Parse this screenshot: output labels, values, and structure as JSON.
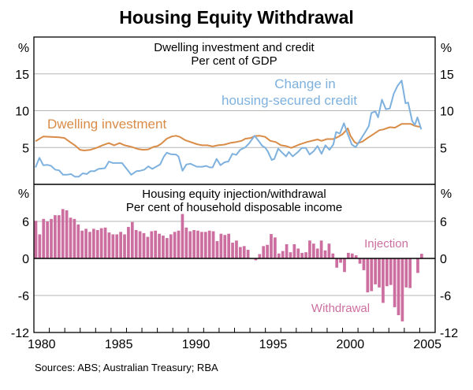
{
  "chart_data": [
    {
      "type": "line",
      "title": "Housing Equity Withdrawal",
      "panel_title": "Dwelling investment and credit",
      "panel_subtitle": "Per cent of GDP",
      "ylabel_left": "%",
      "ylabel_right": "%",
      "ylim": [
        0,
        20
      ],
      "yticks": [
        5,
        10,
        15
      ],
      "grid": true,
      "series": [
        {
          "name": "Dwelling investment",
          "label": "Dwelling investment",
          "color": "#D98C47",
          "x": [
            1980.1,
            1980.61,
            1981.12,
            1981.63,
            1981.97,
            1982.31,
            1982.65,
            1982.99,
            1983.25,
            1983.67,
            1984.1,
            1984.44,
            1984.86,
            1985.2,
            1985.55,
            1985.88,
            1986.31,
            1986.73,
            1987.08,
            1987.41,
            1987.76,
            1988.01,
            1988.27,
            1988.61,
            1988.94,
            1989.2,
            1989.45,
            1989.8,
            1990.22,
            1990.56,
            1990.9,
            1991.24,
            1991.58,
            1991.92,
            1992.35,
            1992.77,
            1993.11,
            1993.45,
            1993.71,
            1994.05,
            1994.3,
            1994.64,
            1994.98,
            1995.32,
            1995.66,
            1996.01,
            1996.34,
            1996.68,
            1997.19,
            1997.7,
            1998.38,
            1998.64,
            1998.98,
            1999.4,
            1999.66,
            2000.0,
            2000.34,
            2000.51,
            2000.77,
            2000.93,
            2001.28,
            2001.62,
            2001.95,
            2002.38,
            2002.64,
            2003.06,
            2003.4,
            2003.83,
            2004.17,
            2004.42,
            2004.68,
            2005.02
          ],
          "values": [
            5.85,
            6.5,
            6.45,
            6.4,
            6.3,
            5.8,
            5.3,
            4.7,
            4.6,
            4.7,
            5.0,
            5.3,
            5.6,
            5.3,
            5.6,
            5.3,
            5.1,
            4.8,
            4.7,
            4.75,
            5.1,
            5.2,
            5.55,
            6.2,
            6.5,
            6.6,
            6.45,
            6.0,
            5.7,
            5.45,
            5.3,
            5.3,
            5.15,
            5.3,
            5.4,
            5.65,
            5.75,
            5.9,
            6.2,
            6.3,
            6.55,
            6.6,
            6.45,
            5.9,
            5.75,
            5.3,
            5.2,
            4.95,
            5.4,
            5.75,
            6.1,
            5.9,
            6.15,
            6.15,
            6.4,
            6.8,
            7.6,
            6.6,
            5.75,
            5.55,
            5.8,
            6.3,
            6.75,
            7.35,
            7.45,
            7.75,
            7.7,
            8.2,
            8.2,
            8.2,
            7.95,
            7.8
          ]
        },
        {
          "name": "Change in housing-secured credit",
          "label": [
            "Change in",
            "housing-secured credit"
          ],
          "color": "#7EB1DE",
          "x": [
            1980.1,
            1980.36,
            1980.61,
            1980.87,
            1981.12,
            1981.38,
            1981.63,
            1981.89,
            1982.14,
            1982.4,
            1982.65,
            1982.91,
            1983.16,
            1983.42,
            1983.67,
            1983.93,
            1984.18,
            1984.44,
            1984.61,
            1984.86,
            1985.12,
            1985.37,
            1985.71,
            1985.97,
            1986.31,
            1986.65,
            1986.9,
            1987.16,
            1987.41,
            1987.67,
            1987.92,
            1988.18,
            1988.43,
            1988.61,
            1988.86,
            1989.2,
            1989.37,
            1989.63,
            1989.88,
            1990.14,
            1990.56,
            1990.9,
            1991.16,
            1991.41,
            1991.58,
            1991.84,
            1992.09,
            1992.35,
            1992.6,
            1992.86,
            1993.11,
            1993.37,
            1993.71,
            1993.96,
            1994.3,
            1994.56,
            1994.81,
            1994.98,
            1995.15,
            1995.41,
            1995.58,
            1995.83,
            1996.09,
            1996.34,
            1996.52,
            1996.77,
            1997.11,
            1997.36,
            1997.62,
            1997.87,
            1998.13,
            1998.38,
            1998.64,
            1998.89,
            1999.15,
            1999.4,
            1999.58,
            1999.83,
            2000.09,
            2000.34,
            2000.6,
            2000.85,
            2001.11,
            2001.44,
            2001.7,
            2001.87,
            2002.13,
            2002.3,
            2002.55,
            2002.81,
            2003.06,
            2003.32,
            2003.57,
            2003.83,
            2004.08,
            2004.25,
            2004.51,
            2004.68,
            2004.85,
            2005.1
          ],
          "values": [
            2.3,
            3.6,
            2.6,
            2.65,
            2.5,
            2.0,
            1.9,
            1.3,
            1.3,
            1.4,
            1.05,
            1.05,
            1.5,
            1.4,
            1.8,
            1.8,
            2.1,
            2.15,
            2.2,
            3.1,
            2.9,
            2.9,
            2.9,
            2.2,
            1.3,
            1.8,
            1.85,
            2.0,
            2.45,
            2.1,
            2.4,
            2.7,
            3.8,
            4.3,
            4.1,
            4.05,
            3.8,
            1.85,
            2.7,
            2.8,
            2.4,
            2.4,
            2.5,
            2.3,
            2.3,
            3.45,
            2.6,
            3.0,
            3.1,
            4.15,
            4.0,
            4.7,
            5.05,
            5.6,
            6.6,
            5.9,
            5.2,
            5.0,
            4.5,
            3.3,
            3.45,
            4.85,
            4.3,
            3.8,
            4.4,
            3.8,
            4.4,
            4.95,
            4.95,
            4.05,
            4.5,
            5.2,
            4.15,
            5.3,
            4.7,
            5.4,
            7.1,
            6.9,
            8.3,
            6.8,
            5.4,
            5.05,
            5.9,
            7.0,
            7.9,
            9.7,
            9.9,
            9.1,
            11.5,
            10.2,
            10.3,
            12.3,
            13.4,
            14.1,
            11.0,
            11.1,
            8.6,
            8.05,
            9.1,
            7.45
          ]
        }
      ]
    },
    {
      "type": "bar",
      "panel_title": "Housing equity injection/withdrawal",
      "panel_subtitle": "Per cent of household disposable income",
      "ylabel_left": "%",
      "ylabel_right": "%",
      "ylim": [
        -12,
        12
      ],
      "yticks": [
        -12,
        -6,
        0,
        6
      ],
      "grid": true,
      "frequency": "quarterly",
      "start": "1980Q1",
      "end": "2005Q1",
      "color": "#CC6FA0",
      "annotations": {
        "positive": "Injection",
        "negative": "Withdrawal"
      },
      "values": [
        6.1,
        3.9,
        6.4,
        6.0,
        6.4,
        7.0,
        7.0,
        8.0,
        7.8,
        6.6,
        6.4,
        5.5,
        4.5,
        4.8,
        4.3,
        4.8,
        4.6,
        4.9,
        5.0,
        4.2,
        3.9,
        3.9,
        4.3,
        3.9,
        5.1,
        5.9,
        4.6,
        4.4,
        4.1,
        3.5,
        4.4,
        4.5,
        4.0,
        3.7,
        3.3,
        3.9,
        4.3,
        4.5,
        7.2,
        5.0,
        4.4,
        4.6,
        4.5,
        4.3,
        4.3,
        4.5,
        4.4,
        2.8,
        4.0,
        3.8,
        4.0,
        2.55,
        2.9,
        1.85,
        2.0,
        1.4,
        0,
        -0.3,
        0.7,
        2.0,
        2.2,
        3.95,
        3.4,
        0.8,
        1.2,
        2.3,
        1.0,
        2.3,
        1.6,
        0.9,
        1.0,
        2.9,
        2.4,
        1.6,
        2.9,
        1.3,
        2.4,
        0.8,
        -1.5,
        -0.7,
        -2.2,
        0.9,
        0.8,
        0.5,
        -0.85,
        -1.9,
        -5.5,
        -5.3,
        -4.2,
        -4.7,
        -7.2,
        -4.5,
        -4.3,
        -7.9,
        -9.2,
        -10.2,
        -4.7,
        -4.8,
        0,
        -2.35,
        0.75
      ]
    }
  ],
  "xaxis": {
    "range": [
      1980,
      2006
    ],
    "tick_labels": [
      "1980",
      "1985",
      "1990",
      "1995",
      "2000",
      "2005"
    ],
    "tick_years": [
      1980,
      1985,
      1990,
      1995,
      2000,
      2005
    ]
  },
  "title": "Housing Equity Withdrawal",
  "source": "Sources: ABS; Australian Treasury; RBA"
}
